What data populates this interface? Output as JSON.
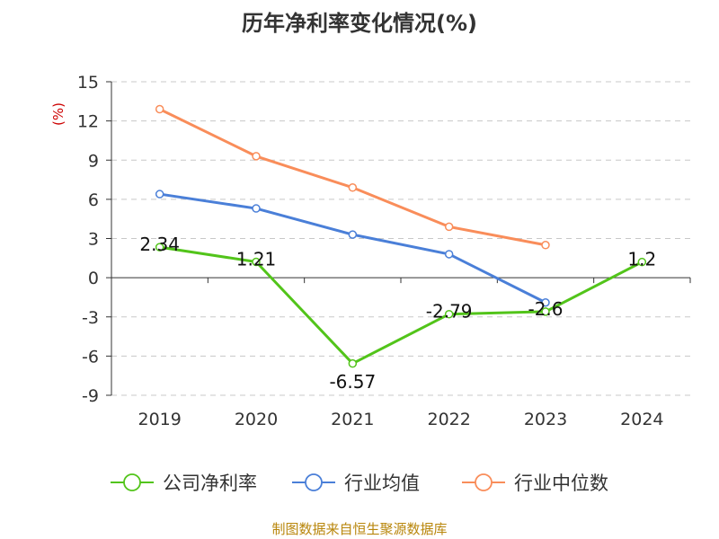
{
  "chart_data": {
    "type": "line",
    "title": "历年净利率变化情况(%)",
    "ylabel": "(%)",
    "categories": [
      "2019",
      "2020",
      "2021",
      "2022",
      "2023",
      "2024"
    ],
    "ylim": [
      -9,
      15
    ],
    "yticks": [
      15,
      12,
      9,
      6,
      3,
      0,
      -3,
      -6,
      -9
    ],
    "grid": true,
    "legend_position": "bottom",
    "series": [
      {
        "name": "公司净利率",
        "color": "#52c41a",
        "values": [
          2.34,
          1.21,
          -6.57,
          -2.79,
          -2.6,
          1.2
        ],
        "labels": [
          "2.34",
          "1.21",
          "-6.57",
          "-2.79",
          "-2.6",
          "1.2"
        ]
      },
      {
        "name": "行业均值",
        "color": "#4a7fd8",
        "values": [
          6.4,
          5.3,
          3.3,
          1.8,
          -1.9,
          null
        ]
      },
      {
        "name": "行业中位数",
        "color": "#f98d5a",
        "values": [
          12.9,
          9.3,
          6.9,
          3.9,
          2.5,
          null
        ]
      }
    ],
    "source": "制图数据来自恒生聚源数据库"
  }
}
